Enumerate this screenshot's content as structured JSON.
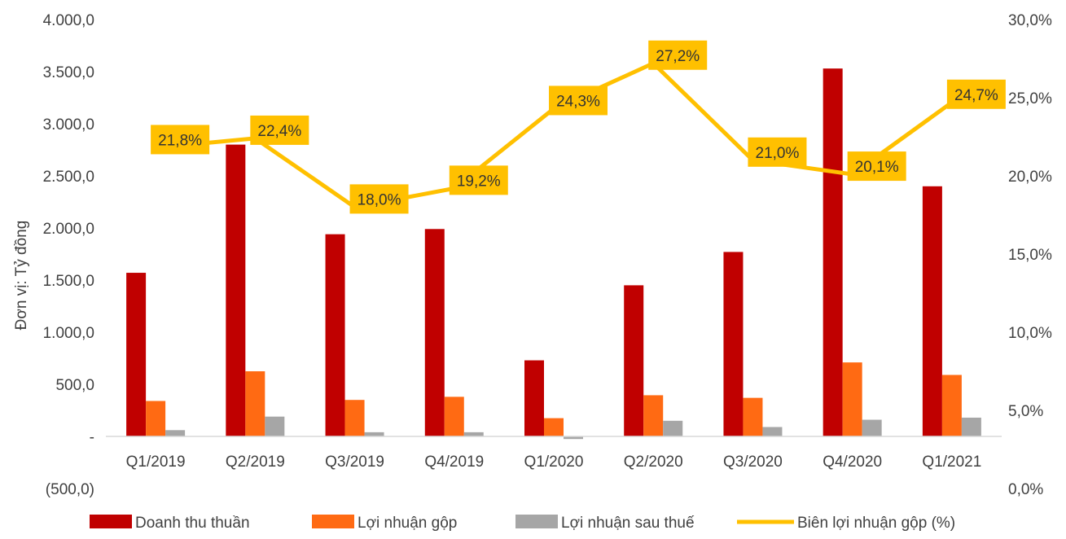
{
  "chart_data": {
    "type": "bar",
    "categories": [
      "Q1/2019",
      "Q2/2019",
      "Q3/2019",
      "Q4/2019",
      "Q1/2020",
      "Q2/2020",
      "Q3/2020",
      "Q4/2020",
      "Q1/2021"
    ],
    "series": [
      {
        "name": "Doanh thu thuần",
        "type": "bar",
        "axis": "left",
        "color": "#C00000",
        "values": [
          1570,
          2800,
          1940,
          1990,
          730,
          1450,
          1770,
          3530,
          2400
        ]
      },
      {
        "name": "Lợi nhuận gộp",
        "type": "bar",
        "axis": "left",
        "color": "#FF6A13",
        "values": [
          340,
          625,
          350,
          380,
          175,
          395,
          370,
          710,
          590
        ]
      },
      {
        "name": "Lợi nhuận sau thuế",
        "type": "bar",
        "axis": "left",
        "color": "#A6A6A6",
        "values": [
          60,
          190,
          40,
          40,
          -25,
          150,
          90,
          160,
          180
        ]
      },
      {
        "name": "Biên lợi nhuận gộp (%)",
        "type": "line",
        "axis": "right",
        "color": "#FFC000",
        "values": [
          21.8,
          22.4,
          18.0,
          19.2,
          24.3,
          27.2,
          21.0,
          20.1,
          24.7
        ],
        "data_labels": [
          "21,8%",
          "22,4%",
          "18,0%",
          "19,2%",
          "24,3%",
          "27,2%",
          "21,0%",
          "20,1%",
          "24,7%"
        ],
        "label_color": "#FFC000"
      }
    ],
    "ylabel": "Đơn vị: Tỷ đồng",
    "ylim": [
      -500,
      4000
    ],
    "ylim_right": [
      0,
      30
    ],
    "y_ticks": [
      {
        "value": 4000,
        "label": "4.000,0"
      },
      {
        "value": 3500,
        "label": "3.500,0"
      },
      {
        "value": 3000,
        "label": "3.000,0"
      },
      {
        "value": 2500,
        "label": "2.500,0"
      },
      {
        "value": 2000,
        "label": "2.000,0"
      },
      {
        "value": 1500,
        "label": "1.500,0"
      },
      {
        "value": 1000,
        "label": "1.000,0"
      },
      {
        "value": 500,
        "label": "500,0"
      },
      {
        "value": 0,
        "label": "-"
      },
      {
        "value": -500,
        "label": "(500,0)"
      }
    ],
    "y2_ticks": [
      {
        "value": 30,
        "label": "30,0%"
      },
      {
        "value": 25,
        "label": "25,0%"
      },
      {
        "value": 20,
        "label": "20,0%"
      },
      {
        "value": 15,
        "label": "15,0%"
      },
      {
        "value": 10,
        "label": "10,0%"
      },
      {
        "value": 5,
        "label": "5,0%"
      },
      {
        "value": 0,
        "label": "0,0%"
      }
    ],
    "grid": false,
    "legend_position": "bottom"
  }
}
